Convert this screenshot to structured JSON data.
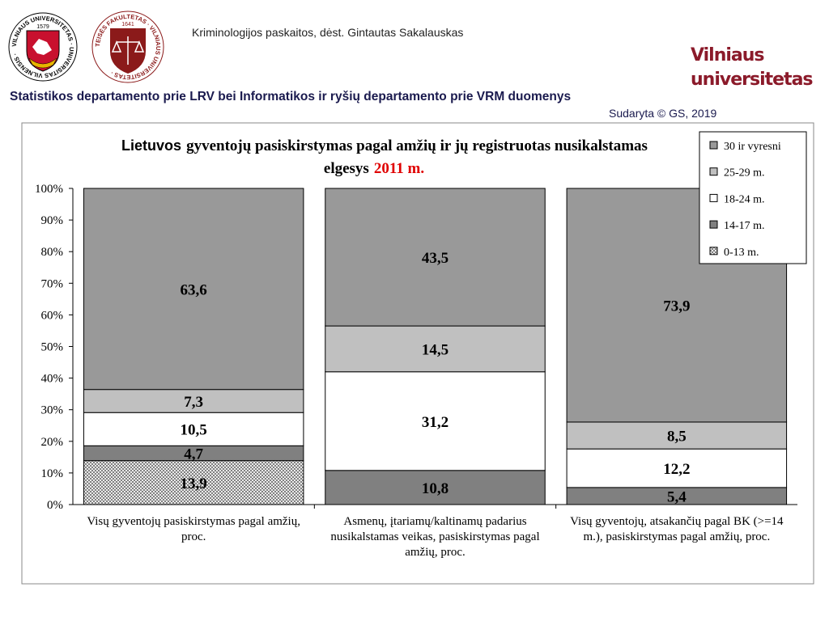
{
  "header": {
    "course": "Kriminologijos paskaitos, dėst. Gintautas Sakalauskas",
    "university": "Vilniaus universitetas",
    "source": "Statistikos departamento prie LRV bei Informatikos ir ryšių departamento prie VRM duomenys",
    "credit": "Sudaryta © GS, 2019",
    "logos": [
      {
        "ring": "VILNIAUS UNIVERSITETAS · UNIVERSITAS VILNENSIS ·",
        "year": "1579"
      },
      {
        "ring": "TEISĖS FAKULTETAS · VILNIAUS UNIVERSITETAS ·",
        "year": "1641"
      }
    ]
  },
  "chart_data": {
    "type": "bar",
    "stacked": true,
    "title": [
      "Lietuvos",
      "gyventojų pasiskirstymas pagal amžių ir jų registruotas nusikalstamas",
      "elgesys",
      "2011 m."
    ],
    "categories": [
      "Visų gyventojų pasiskirstymas pagal amžių, proc.",
      "Asmenų, įtariamų/kaltinamų padarius nusikalstamas veikas, pasiskirstymas pagal amžių, proc.",
      "Visų gyventojų, atsakančių pagal BK (>=14 m.), pasiskirstymas pagal amžių, proc."
    ],
    "series": [
      {
        "name": "0-13 m.",
        "color": "#d0d0d0",
        "hatch": true,
        "values": [
          13.9,
          null,
          null
        ],
        "value_labels": [
          "13,9",
          null,
          null
        ]
      },
      {
        "name": "14-17 m.",
        "color": "#808080",
        "values": [
          4.7,
          10.8,
          5.4
        ],
        "value_labels": [
          "4,7",
          "10,8",
          "5,4"
        ]
      },
      {
        "name": "18-24 m.",
        "color": "#ffffff",
        "values": [
          10.5,
          31.2,
          12.2
        ],
        "value_labels": [
          "10,5",
          "31,2",
          "12,2"
        ]
      },
      {
        "name": "25-29 m.",
        "color": "#c0c0c0",
        "values": [
          7.3,
          14.5,
          8.5
        ],
        "value_labels": [
          "7,3",
          "14,5",
          "8,5"
        ]
      },
      {
        "name": "30 ir vyresni",
        "color": "#999999",
        "values": [
          63.6,
          43.5,
          73.9
        ],
        "value_labels": [
          "63,6",
          "43,5",
          "73,9"
        ]
      }
    ],
    "ylim": [
      0,
      100
    ],
    "yticks": [
      {
        "value": 0,
        "label": "0%"
      },
      {
        "value": 10,
        "label": "10%"
      },
      {
        "value": 20,
        "label": "20%"
      },
      {
        "value": 30,
        "label": "30%"
      },
      {
        "value": 40,
        "label": "40%"
      },
      {
        "value": 50,
        "label": "50%"
      },
      {
        "value": 60,
        "label": "60%"
      },
      {
        "value": 70,
        "label": "70%"
      },
      {
        "value": 80,
        "label": "80%"
      },
      {
        "value": 90,
        "label": "90%"
      },
      {
        "value": 100,
        "label": "100%"
      }
    ],
    "grid": false,
    "legend": "top-right"
  }
}
